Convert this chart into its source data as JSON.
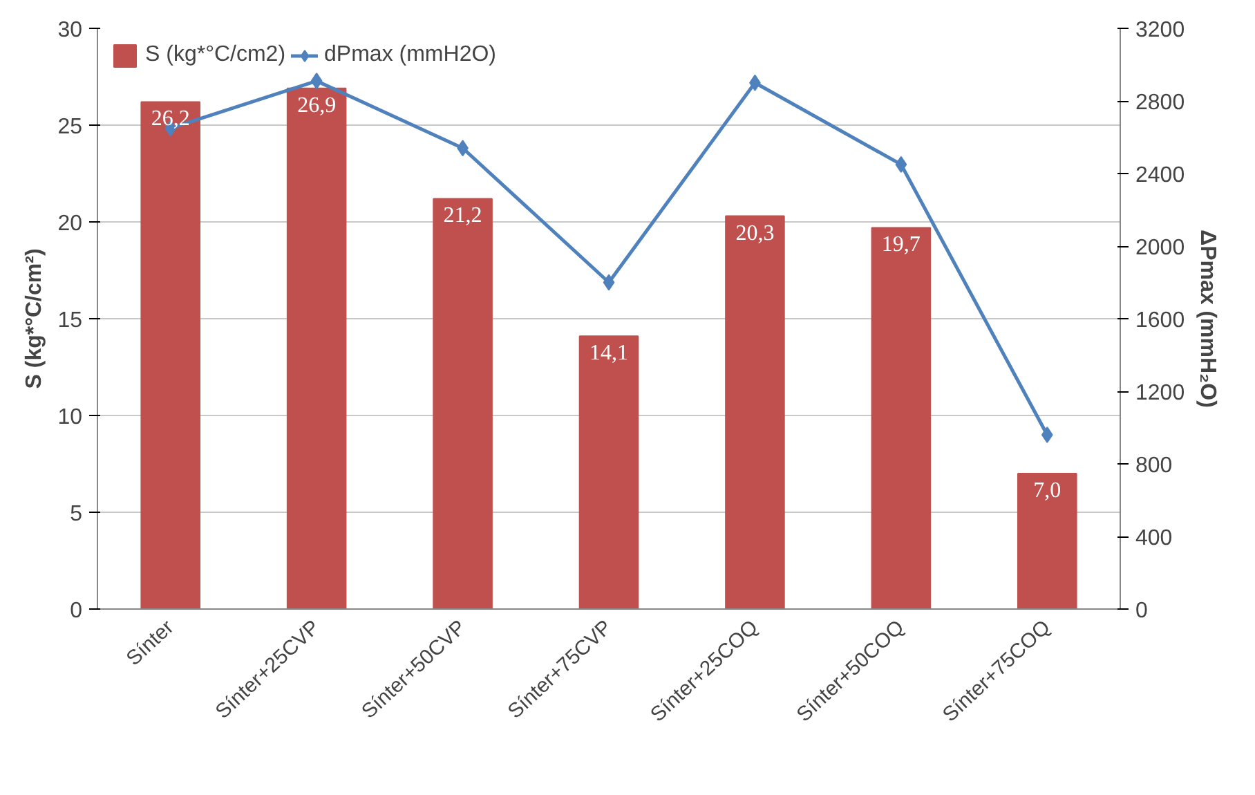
{
  "chart_data": {
    "type": "bar",
    "categories": [
      "Sínter",
      "Sínter+25CVP",
      "Sínter+50CVP",
      "Sínter+75CVP",
      "Sínter+25COQ",
      "Sínter+50COQ",
      "Sínter+75COQ"
    ],
    "series": [
      {
        "name": "S (kg*°C/cm2)",
        "color": "#c0504d",
        "values": [
          26.2,
          26.9,
          21.2,
          14.1,
          20.3,
          19.7,
          7.0
        ],
        "value_labels": [
          "26,2",
          "26,9",
          "21,2",
          "14,1",
          "20,3",
          "19,7",
          "7,0"
        ]
      },
      {
        "name": "dPmax (mmH2O)",
        "type": "line",
        "axis": "y2",
        "color": "#4f81bd",
        "values": [
          2650,
          2910,
          2540,
          1800,
          2900,
          2450,
          960
        ]
      }
    ],
    "ylabel": "S (kg*°C/cm²)",
    "y2label": "ΔPmax (mmH₂O)",
    "ylim": [
      0,
      30
    ],
    "yticks": [
      0,
      5,
      10,
      15,
      20,
      25,
      30
    ],
    "y2lim": [
      0,
      3200
    ],
    "y2ticks": [
      0,
      400,
      800,
      1200,
      1600,
      2000,
      2400,
      2800,
      3200
    ],
    "grid": "y",
    "legend": "top left",
    "marker": "diamond"
  }
}
